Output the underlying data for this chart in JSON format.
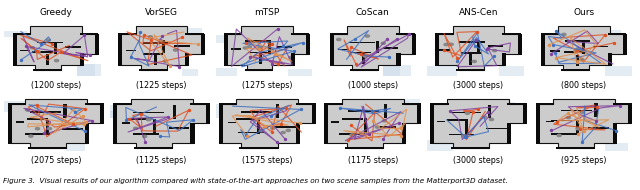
{
  "col_headers": [
    "Greedy",
    "VorSEG",
    "mTSP",
    "CoScan",
    "ANS-Cen",
    "Ours"
  ],
  "row1_steps": [
    "(1200 steps)",
    "(1225 steps)",
    "(1275 steps)",
    "(1000 steps)",
    "(3000 steps)",
    "(800 steps)"
  ],
  "row2_steps": [
    "(2075 steps)",
    "(1125 steps)",
    "(1575 steps)",
    "(1175 steps)",
    "(3000 steps)",
    "(925 steps)"
  ],
  "caption": "Figure 3.  Visual results of our algorithm compared with state-of-the-art approaches on two scene samples from the Matterport3D dataset.",
  "bg_color": "#ffffff",
  "header_fontsize": 6.5,
  "steps_fontsize": 5.8,
  "caption_fontsize": 5.2,
  "n_cols": 6,
  "n_rows": 2,
  "fig_width": 6.4,
  "fig_height": 1.9,
  "map_bg": "#b8b8b8",
  "wall_color": "#111111",
  "floor_color": "#d0d0d0",
  "path_colors": [
    "#e05020",
    "#8040a0",
    "#4070c0",
    "#e09050"
  ]
}
